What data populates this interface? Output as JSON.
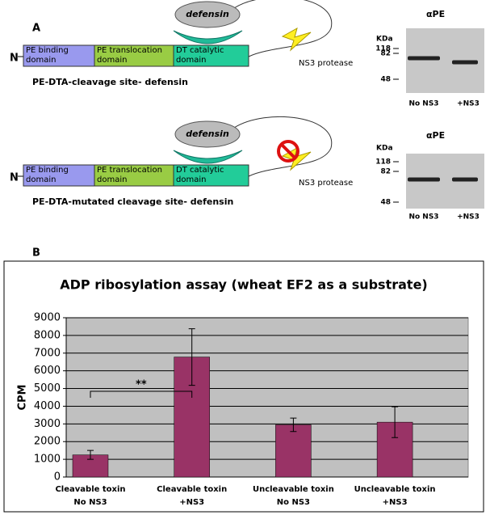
{
  "panels": {
    "a": "A",
    "b": "B"
  },
  "constructs": [
    {
      "n_label": "N",
      "domains": [
        [
          "PE binding",
          "domain"
        ],
        [
          "PE translocation",
          "domain"
        ],
        [
          "DT catalytic",
          "domain"
        ]
      ],
      "insert": "defensin",
      "protease": "NS3 protease",
      "name": "PE-DTA-cleavage site- defensin"
    },
    {
      "n_label": "N",
      "domains": [
        [
          "PE binding",
          "domain"
        ],
        [
          "PE translocation",
          "domain"
        ],
        [
          "DT catalytic",
          "domain"
        ]
      ],
      "insert": "defensin",
      "protease": "NS3 protease",
      "name": "PE-DTA-mutated cleavage site- defensin"
    }
  ],
  "blots": [
    {
      "title": "αPE",
      "unit": "KDa",
      "markers": [
        "118",
        "82",
        "48"
      ],
      "lanes": [
        "No NS3",
        "+NS3"
      ]
    },
    {
      "title": "αPE",
      "unit": "KDa",
      "markers": [
        "118",
        "82",
        "48"
      ],
      "lanes": [
        "No NS3",
        "+NS3"
      ]
    }
  ],
  "chart_data": {
    "type": "bar",
    "title": "ADP ribosylation assay (wheat EF2 as a substrate)",
    "y_label": "CPM",
    "categories": [
      [
        "Cleavable toxin",
        "No NS3"
      ],
      [
        "Cleavable toxin",
        "+NS3"
      ],
      [
        "Uncleavable toxin",
        "No NS3"
      ],
      [
        "Uncleavable toxin",
        "+NS3"
      ]
    ],
    "values": [
      1250,
      6780,
      2950,
      3100
    ],
    "errors": [
      250,
      1600,
      380,
      870
    ],
    "color": "#993366",
    "ylim": [
      0,
      9000
    ],
    "yticks": [
      0,
      1000,
      2000,
      3000,
      4000,
      5000,
      6000,
      7000,
      8000,
      9000
    ],
    "grid": true,
    "annotation": "**"
  }
}
